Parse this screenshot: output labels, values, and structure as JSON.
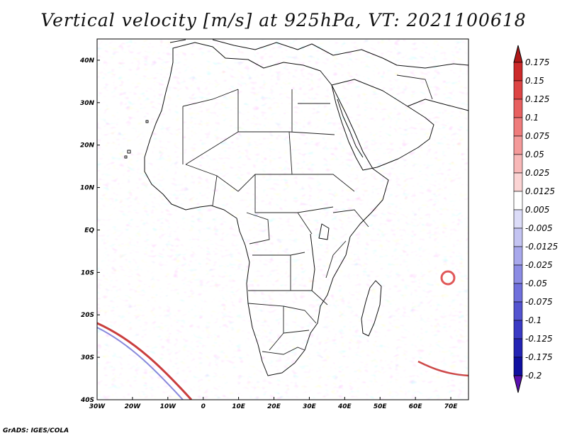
{
  "map": {
    "title": "Vertical velocity [m/s] at 925hPa, VT: 2021100618",
    "credit": "GrADS: IGES/COLA",
    "variable": "Vertical velocity",
    "units": "m/s",
    "level": "925hPa",
    "valid_time": "2021100618",
    "extent": {
      "lon_min": -30,
      "lon_max": 75,
      "lat_min": -40,
      "lat_max": 45
    },
    "lat_labels": [
      {
        "value": 40,
        "label": "40N"
      },
      {
        "value": 30,
        "label": "30N"
      },
      {
        "value": 20,
        "label": "20N"
      },
      {
        "value": 10,
        "label": "10N"
      },
      {
        "value": 0,
        "label": "EQ"
      },
      {
        "value": -10,
        "label": "10S"
      },
      {
        "value": -20,
        "label": "20S"
      },
      {
        "value": -30,
        "label": "30S"
      },
      {
        "value": -40,
        "label": "40S"
      }
    ],
    "lon_labels": [
      {
        "value": -30,
        "label": "30W"
      },
      {
        "value": -20,
        "label": "20W"
      },
      {
        "value": -10,
        "label": "10W"
      },
      {
        "value": 0,
        "label": "0"
      },
      {
        "value": 10,
        "label": "10E"
      },
      {
        "value": 20,
        "label": "20E"
      },
      {
        "value": 30,
        "label": "30E"
      },
      {
        "value": 40,
        "label": "40E"
      },
      {
        "value": 50,
        "label": "50E"
      },
      {
        "value": 60,
        "label": "60E"
      },
      {
        "value": 70,
        "label": "70E"
      }
    ]
  },
  "colorbar": {
    "labels": [
      "0.175",
      "0.15",
      "0.125",
      "0.1",
      "0.075",
      "0.05",
      "0.025",
      "0.0125",
      "0.005",
      "-0.005",
      "-0.0125",
      "-0.025",
      "-0.05",
      "-0.075",
      "-0.1",
      "-0.125",
      "-0.175",
      "-0.2"
    ],
    "colors": [
      "#b01818",
      "#cc2a2a",
      "#dd4444",
      "#e86060",
      "#ef7c7c",
      "#f49a9a",
      "#f8b8b8",
      "#fbd4d4",
      "#ffffff",
      "#dcdcf8",
      "#c4c4f2",
      "#a8a8ec",
      "#8c8ce4",
      "#7070dc",
      "#5454d0",
      "#3a3ac4",
      "#2424b4",
      "#1010a0",
      "#5a10b0"
    ],
    "top_color": "#b01818",
    "bottom_color": "#5a10b0"
  }
}
